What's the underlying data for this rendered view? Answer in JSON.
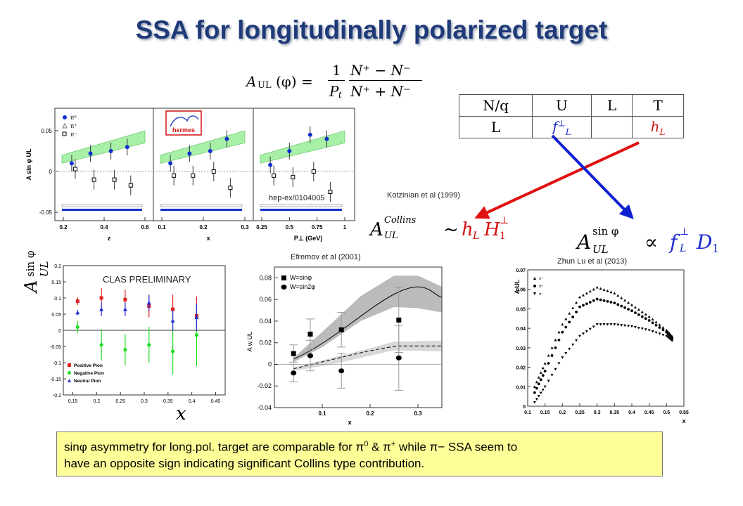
{
  "title": "SSA for longitudinally polarized target",
  "formula_top": {
    "lhs": "A",
    "lhs_sub": "UL",
    "lhs_arg": "(φ) =",
    "coef_num": "1",
    "coef_den": "P",
    "coef_den_sub": "t",
    "num": "N⁺ − N⁻",
    "den": "N⁺ + N⁻"
  },
  "table": {
    "headers": [
      "N/q",
      "U",
      "L",
      "T"
    ],
    "row_label": "L",
    "f": "f",
    "f_sup": "⊥",
    "f_sub": "L",
    "h": "h",
    "h_sub": "L"
  },
  "refs": {
    "kotzinian": "Kotzinian et al (1999)",
    "efremov": "Efremov et al (2001)",
    "zhun": "Zhun Lu  et al (2013)",
    "hep": "hep-ex/0104005",
    "clas": "CLAS PRELIMINARY"
  },
  "collins": {
    "A": "A",
    "sup": "Collins",
    "sub": "UL",
    "rel": "~",
    "rhs": "h",
    "rhs_sub": "L",
    "H": "H",
    "H_sup": "⊥",
    "H_sub": "1"
  },
  "sinphi_formula": {
    "A": "A",
    "sup": "sin φ",
    "sub": "UL",
    "rel": "∝",
    "f": "f",
    "f_sup": "⊥",
    "f_sub": "L",
    "D": "D",
    "D_sub": "1"
  },
  "clas_axis_label": {
    "A": "A",
    "sup": "sin φ",
    "sub": "UL",
    "x": "x"
  },
  "colors": {
    "title": "#1f3a78",
    "red_arrow": "#e01010",
    "blue_arrow": "#1020d0",
    "box": "#ffff99"
  },
  "bottom_text": {
    "p1a": "sin",
    "phi": "φ",
    "p1b": " asymmetry for long.pol. target are comparable  for ",
    "pi": "π",
    "pi0_sup": "0",
    "amp": " & ",
    "pip_sup": "+",
    "p1c": " while ",
    "pim": "π−",
    "p1d": " SSA seem to",
    "p2": "have an opposite sign indicating significant Collins type contribution."
  },
  "chart_data": [
    {
      "type": "scatter",
      "name": "hermes",
      "ylabel": "A sin φ UL",
      "yticks": [
        "0.05",
        "0",
        "-0.05"
      ],
      "legend": [
        "π⁰",
        "π⁺",
        "π⁻"
      ],
      "logo": "hermes",
      "panels": [
        {
          "xlabel": "z",
          "xticks": [
            "0.2",
            "0.4",
            "0.6"
          ]
        },
        {
          "xlabel": "x",
          "xticks": [
            "0.1",
            "0.2",
            "0.3"
          ]
        },
        {
          "xlabel": "P⊥ (GeV)",
          "xticks": [
            "0.25",
            "0.5",
            "0.75",
            "1"
          ]
        }
      ]
    },
    {
      "type": "scatter",
      "name": "clas",
      "xticks": [
        "0.15",
        "0.2",
        "0.25",
        "0.3",
        "0.35",
        "0.4",
        "0.45"
      ],
      "yticks": [
        "0.2",
        "0.15",
        "0.1",
        "0.05",
        "0",
        "-0.05",
        "-0.1",
        "-0.15",
        "-0.2"
      ],
      "xlim": [
        0.13,
        0.47
      ],
      "ylim": [
        -0.2,
        0.2
      ],
      "series": [
        {
          "name": "Positive Pion",
          "color": "#e02020",
          "x": [
            0.16,
            0.21,
            0.26,
            0.31,
            0.36,
            0.41
          ],
          "y": [
            0.09,
            0.1,
            0.095,
            0.075,
            0.065,
            0.045
          ]
        },
        {
          "name": "Negative Pion",
          "color": "#22dd22",
          "x": [
            0.16,
            0.21,
            0.26,
            0.31,
            0.36,
            0.41
          ],
          "y": [
            0.01,
            -0.045,
            -0.06,
            -0.045,
            -0.065,
            -0.015
          ]
        },
        {
          "name": "Neutral Pion",
          "color": "#2030d0",
          "x": [
            0.16,
            0.21,
            0.26,
            0.31,
            0.36,
            0.41
          ],
          "y": [
            0.055,
            0.065,
            0.065,
            0.085,
            0.03,
            0.04
          ]
        }
      ]
    },
    {
      "type": "line",
      "name": "efremov",
      "ylabel": "A w UL",
      "xlabel": "x",
      "xticks": [
        "0.1",
        "0.2",
        "0.3"
      ],
      "yticks": [
        "0.08",
        "0.06",
        "0.04",
        "0.02",
        "0",
        "-0.02",
        "-0.04"
      ],
      "xlim": [
        0.0,
        0.35
      ],
      "ylim": [
        -0.04,
        0.09
      ],
      "legend": [
        "W=sinφ",
        "W=sin2φ"
      ],
      "series": [
        {
          "name": "W=sinφ",
          "x": [
            0.04,
            0.075,
            0.14,
            0.26
          ],
          "y": [
            0.01,
            0.028,
            0.032,
            0.041
          ]
        },
        {
          "name": "W=sin2φ",
          "x": [
            0.04,
            0.075,
            0.14,
            0.26
          ],
          "y": [
            -0.008,
            0.008,
            -0.006,
            0.006
          ]
        }
      ]
    },
    {
      "type": "line",
      "name": "zhun-lu",
      "xlabel": "x",
      "ylabel": "A UL",
      "xticks": [
        "0.1",
        "0.15",
        "0.2",
        "0.25",
        "0.3",
        "0.35",
        "0.4",
        "0.45",
        "0.5",
        "0.55"
      ],
      "yticks": [
        "0.07",
        "0.06",
        "0.05",
        "0.04",
        "0.03",
        "0.02",
        "0.01",
        "0"
      ],
      "xlim": [
        0.1,
        0.55
      ],
      "ylim": [
        0,
        0.07
      ],
      "legend": [
        "π⁺",
        "π⁰",
        "π⁻"
      ],
      "series": [
        {
          "name": "π⁺",
          "x": [
            0.12,
            0.15,
            0.2,
            0.25,
            0.3,
            0.35,
            0.4,
            0.45,
            0.5,
            0.52
          ],
          "y": [
            0.01,
            0.022,
            0.042,
            0.056,
            0.061,
            0.058,
            0.052,
            0.046,
            0.039,
            0.035
          ]
        },
        {
          "name": "π⁰",
          "x": [
            0.12,
            0.15,
            0.2,
            0.25,
            0.3,
            0.35,
            0.4,
            0.45,
            0.5,
            0.52
          ],
          "y": [
            0.007,
            0.018,
            0.038,
            0.051,
            0.055,
            0.053,
            0.049,
            0.044,
            0.038,
            0.034
          ]
        },
        {
          "name": "π⁻",
          "x": [
            0.12,
            0.15,
            0.2,
            0.25,
            0.3,
            0.35,
            0.4,
            0.45,
            0.5,
            0.52
          ],
          "y": [
            0.002,
            0.01,
            0.025,
            0.036,
            0.042,
            0.042,
            0.041,
            0.039,
            0.036,
            0.033
          ]
        }
      ]
    }
  ]
}
